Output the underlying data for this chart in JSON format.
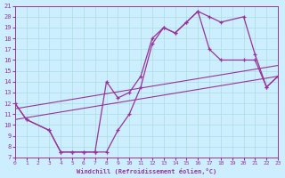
{
  "xlabel": "Windchill (Refroidissement éolien,°C)",
  "bg_color": "#cceeff",
  "grid_color": "#aadddd",
  "line_color": "#993399",
  "xmin": 0,
  "xmax": 23,
  "ymin": 7,
  "ymax": 21,
  "yticks": [
    7,
    8,
    9,
    10,
    11,
    12,
    13,
    14,
    15,
    16,
    17,
    18,
    19,
    20,
    21
  ],
  "xticks": [
    0,
    1,
    2,
    3,
    4,
    5,
    6,
    7,
    8,
    9,
    10,
    11,
    12,
    13,
    14,
    15,
    16,
    17,
    18,
    19,
    20,
    21,
    22,
    23
  ],
  "curve1_x": [
    0,
    1,
    3,
    4,
    5,
    6,
    7,
    8,
    9,
    10,
    11,
    12,
    13,
    14,
    15,
    16,
    17,
    18,
    20,
    21,
    22,
    23
  ],
  "curve1_y": [
    12,
    10.5,
    9.5,
    7.5,
    7.5,
    7.5,
    7.5,
    7.5,
    9.5,
    11.0,
    13.5,
    17.5,
    19.0,
    18.5,
    19.5,
    20.5,
    20.0,
    19.5,
    20.0,
    16.5,
    13.5,
    14.5
  ],
  "curve2_x": [
    0,
    1,
    3,
    4,
    5,
    6,
    7,
    8,
    9,
    10,
    11,
    12,
    13,
    14,
    15,
    16,
    17,
    18,
    20,
    21,
    22,
    23
  ],
  "curve2_y": [
    12,
    10.5,
    9.5,
    7.5,
    7.5,
    7.5,
    7.5,
    14.0,
    12.5,
    13.0,
    14.5,
    18.0,
    19.0,
    18.5,
    19.5,
    20.5,
    17.0,
    16.0,
    16.0,
    16.0,
    13.5,
    14.5
  ],
  "line1_x": [
    0,
    23
  ],
  "line1_y": [
    10.5,
    14.5
  ],
  "line2_x": [
    0,
    23
  ],
  "line2_y": [
    11.5,
    15.5
  ]
}
